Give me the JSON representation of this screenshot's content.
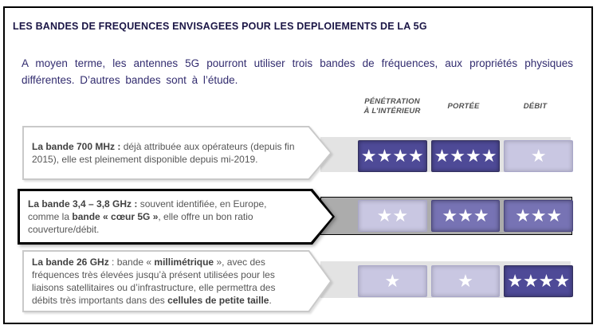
{
  "title": "LES BANDES DE FREQUENCES ENVISAGEES POUR LES DEPLOIEMENTS DE LA 5G",
  "intro": "A moyen terme, les antennes 5G pourront utiliser trois bandes de fréquences, aux propriétés physiques différentes. D’autres bandes sont à l’étude.",
  "columns": [
    {
      "line1": "PÉNÉTRATION",
      "line2": "À L’INTÉRIEUR"
    },
    {
      "line1": "PORTÉE"
    },
    {
      "line1": "DÉBIT"
    }
  ],
  "rows": [
    {
      "band": "700 MHz",
      "emphasis": false,
      "text": [
        {
          "t": "La bande 700 MHz : ",
          "b": true
        },
        {
          "t": "déjà attribuée aux opérateurs (depuis fin 2015), elle est pleinement disponible depuis mi-2019.",
          "b": false
        }
      ],
      "ratings": [
        {
          "stars": 4,
          "tone": "dark"
        },
        {
          "stars": 4,
          "tone": "dark"
        },
        {
          "stars": 1,
          "tone": "light"
        }
      ]
    },
    {
      "band": "3,4 – 3,8 GHz",
      "emphasis": true,
      "text": [
        {
          "t": "La bande 3,4 – 3,8 GHz : ",
          "b": true
        },
        {
          "t": "souvent identifiée, en Europe, comme la ",
          "b": false
        },
        {
          "t": "bande « cœur 5G »",
          "b": true
        },
        {
          "t": ", elle offre un bon ratio couverture/débit.",
          "b": false
        }
      ],
      "ratings": [
        {
          "stars": 2,
          "tone": "light"
        },
        {
          "stars": 3,
          "tone": "medium"
        },
        {
          "stars": 3,
          "tone": "medium"
        }
      ]
    },
    {
      "band": "26 GHz",
      "emphasis": false,
      "text": [
        {
          "t": "La bande 26 GHz",
          "b": true
        },
        {
          "t": " : bande « ",
          "b": false
        },
        {
          "t": "millimétrique",
          "b": true
        },
        {
          "t": " », avec des fréquences très élevées jusqu’à présent utilisées pour les liaisons satellitaires ou d’infrastructure, elle permettra des débits très importants dans des ",
          "b": false
        },
        {
          "t": "cellules de petite taille",
          "b": true
        },
        {
          "t": ".",
          "b": false
        }
      ],
      "ratings": [
        {
          "stars": 1,
          "tone": "light"
        },
        {
          "stars": 1,
          "tone": "light"
        },
        {
          "stars": 4,
          "tone": "dark"
        }
      ]
    }
  ],
  "star_glyph": "★",
  "tones": {
    "dark": "#4E4A97",
    "medium": "#7773B4",
    "light": "#C9C7E2"
  },
  "colors": {
    "frame_border": "#000000",
    "title_text": "#1B1646",
    "intro_text": "#322C6F",
    "column_header_text": "#4F4F4F",
    "row_body_text": "#565656",
    "band_light_gray": "#E3E3E3",
    "band_emphasis_gray": "#ACACAC",
    "arrow_border_light": "#C9C9C9",
    "arrow_border_emphasis": "#000000",
    "star": "#FFFFFF"
  }
}
